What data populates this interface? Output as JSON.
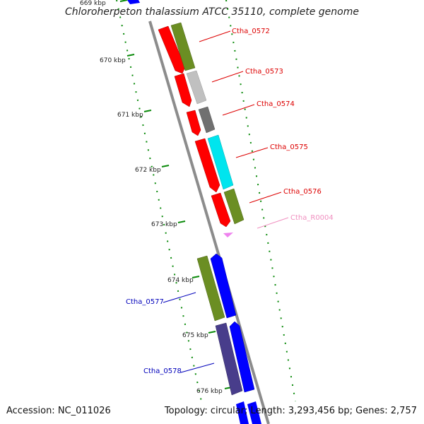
{
  "header": {
    "title": "Chloroherpeton thalassium ATCC 35110, complete genome"
  },
  "footer": {
    "accession": "Accession: NC_011026",
    "summary": "Topology: circular; Length: 3,293,456 bp; Genes: 2,757"
  },
  "ruler": {
    "ticks": [
      {
        "label": "669 kbp"
      },
      {
        "label": "670 kbp"
      },
      {
        "label": "671 kbp"
      },
      {
        "label": "672 kbp"
      },
      {
        "label": "673 kbp"
      },
      {
        "label": "674 kbp"
      },
      {
        "label": "675 kbp"
      },
      {
        "label": "676 kbp"
      }
    ]
  },
  "genes": [
    {
      "label": "Ctha_0572",
      "color": "#dd0000"
    },
    {
      "label": "Ctha_0573",
      "color": "#dd0000"
    },
    {
      "label": "Ctha_0574",
      "color": "#dd0000"
    },
    {
      "label": "Ctha_0575",
      "color": "#dd0000"
    },
    {
      "label": "Ctha_0576",
      "color": "#dd0000"
    },
    {
      "label": "Ctha_R0004",
      "color": "#f090c0"
    },
    {
      "label": "Ctha_0577",
      "color": "#0000bb"
    },
    {
      "label": "Ctha_0578",
      "color": "#0000bb"
    }
  ],
  "colors": {
    "forward_strand": "#ff0000",
    "reverse_strand": "#0000ff",
    "cog_olive": "#6b8e23",
    "cog_silver": "#c0c0c0",
    "cog_gray": "#707070",
    "cog_cyan": "#00e5ee",
    "cog_slate": "#483d8b",
    "rna": "#ee82ee",
    "backbone": "#8c8c8c",
    "ruler_green": "#0a8a0a"
  }
}
